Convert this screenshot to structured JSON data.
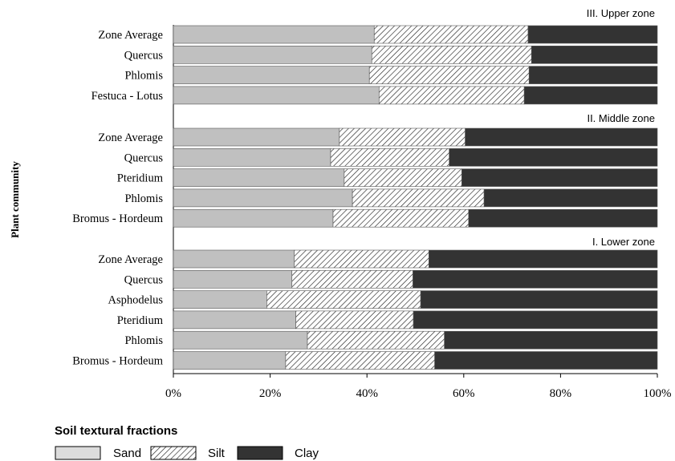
{
  "chart_data": {
    "type": "bar",
    "orientation": "horizontal",
    "stacked": "percent",
    "ylabel": "Plant community",
    "xlim": [
      0,
      100
    ],
    "x_ticks": [
      "0%",
      "20%",
      "40%",
      "60%",
      "80%",
      "100%"
    ],
    "legend": {
      "title": "Soil textural fractions",
      "placement": "bottom-left",
      "items": [
        "Sand",
        "Silt",
        "Clay"
      ]
    },
    "series_names": [
      "Sand",
      "Silt",
      "Clay"
    ],
    "colors": {
      "sand": "#c0c0c0",
      "silt_hatch": "#222222",
      "clay": "#333333",
      "legend_sand": "#dcdcdc"
    },
    "groups": [
      {
        "title": "III. Upper zone",
        "rows": [
          {
            "label": "Zone Average",
            "sand": 41.5,
            "silt": 31.8,
            "clay": 26.7
          },
          {
            "label": "Quercus",
            "sand": 41.0,
            "silt": 33.0,
            "clay": 26.0
          },
          {
            "label": "Phlomis",
            "sand": 40.5,
            "silt": 33.0,
            "clay": 26.5
          },
          {
            "label": "Festuca - Lotus",
            "sand": 42.5,
            "silt": 30.0,
            "clay": 27.5
          }
        ]
      },
      {
        "title": "II. Middle zone",
        "rows": [
          {
            "label": "Zone Average",
            "sand": 34.3,
            "silt": 26.0,
            "clay": 39.7
          },
          {
            "label": "Quercus",
            "sand": 32.5,
            "silt": 24.5,
            "clay": 43.0
          },
          {
            "label": "Pteridium",
            "sand": 35.3,
            "silt": 24.3,
            "clay": 40.4
          },
          {
            "label": "Phlomis",
            "sand": 37.0,
            "silt": 27.2,
            "clay": 35.8
          },
          {
            "label": "Bromus - Hordeum",
            "sand": 33.0,
            "silt": 28.0,
            "clay": 39.0
          }
        ]
      },
      {
        "title": "I. Lower zone",
        "rows": [
          {
            "label": "Zone Average",
            "sand": 25.0,
            "silt": 27.8,
            "clay": 47.2
          },
          {
            "label": "Quercus",
            "sand": 24.5,
            "silt": 25.0,
            "clay": 50.5
          },
          {
            "label": "Asphodelus",
            "sand": 19.3,
            "silt": 31.8,
            "clay": 48.9
          },
          {
            "label": "Pteridium",
            "sand": 25.3,
            "silt": 24.3,
            "clay": 50.4
          },
          {
            "label": "Phlomis",
            "sand": 27.7,
            "silt": 28.3,
            "clay": 44.0
          },
          {
            "label": "Bromus - Hordeum",
            "sand": 23.2,
            "silt": 30.8,
            "clay": 46.0
          }
        ]
      }
    ]
  }
}
